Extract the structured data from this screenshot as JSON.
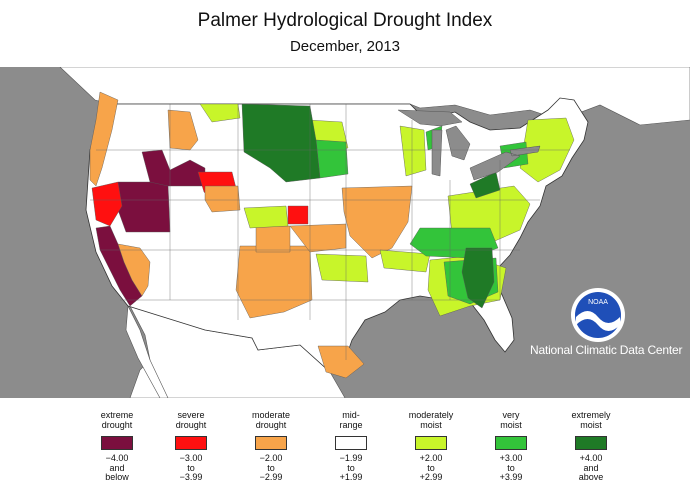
{
  "title": "Palmer Hydrological Drought Index",
  "subtitle": "December, 2013",
  "credit": "National Climatic Data Center",
  "logo_text": "NOAA",
  "colors": {
    "ocean": "#8c8c8c",
    "land": "#ffffff",
    "lakes": "#8c8c8c",
    "border": "#555555"
  },
  "legend": [
    {
      "label_1": "extreme",
      "label_2": "drought",
      "range_1": "−4.00",
      "range_2": "and",
      "range_3": "below",
      "color": "#7b0f3e"
    },
    {
      "label_1": "severe",
      "label_2": "drought",
      "range_1": "−3.00",
      "range_2": "to",
      "range_3": "−3.99",
      "color": "#ff1010"
    },
    {
      "label_1": "moderate",
      "label_2": "drought",
      "range_1": "−2.00",
      "range_2": "to",
      "range_3": "−2.99",
      "color": "#f7a44a"
    },
    {
      "label_1": "mid-",
      "label_2": "range",
      "range_1": "−1.99",
      "range_2": "to",
      "range_3": "+1.99",
      "color": "#ffffff"
    },
    {
      "label_1": "moderately",
      "label_2": "moist",
      "range_1": "+2.00",
      "range_2": "to",
      "range_3": "+2.99",
      "color": "#c8f52a"
    },
    {
      "label_1": "very",
      "label_2": "moist",
      "range_1": "+3.00",
      "range_2": "to",
      "range_3": "+3.99",
      "color": "#33c43a"
    },
    {
      "label_1": "extremely",
      "label_2": "moist",
      "range_1": "+4.00",
      "range_2": "and",
      "range_3": "above",
      "color": "#1f7a26"
    }
  ]
}
